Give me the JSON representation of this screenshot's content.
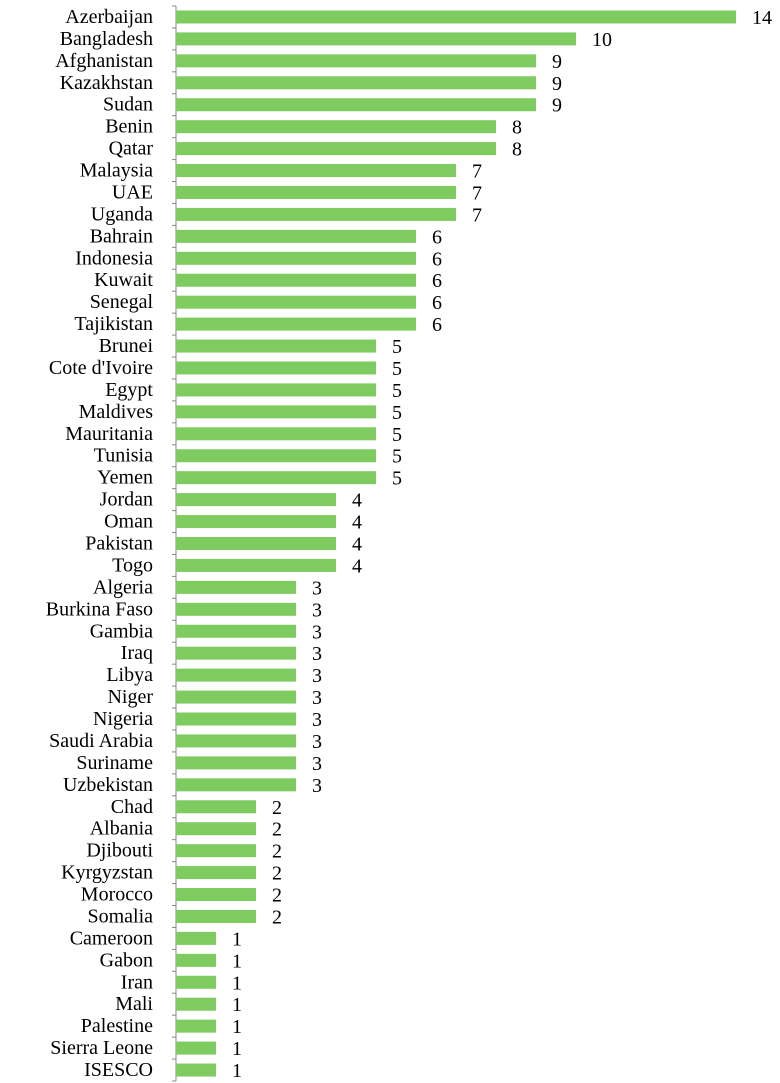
{
  "chart_data": {
    "type": "bar",
    "orientation": "horizontal",
    "title": "",
    "xlabel": "",
    "ylabel": "",
    "bar_color": "#7ecb5f",
    "xlim": [
      0,
      14
    ],
    "grid": false,
    "legend": "none",
    "categories": [
      "Azerbaijan",
      "Bangladesh",
      "Afghanistan",
      "Kazakhstan",
      "Sudan",
      "Benin",
      "Qatar",
      "Malaysia",
      "UAE",
      "Uganda",
      "Bahrain",
      "Indonesia",
      "Kuwait",
      "Senegal",
      "Tajikistan",
      "Brunei",
      "Cote d'Ivoire",
      "Egypt",
      "Maldives",
      "Mauritania",
      "Tunisia",
      "Yemen",
      "Jordan",
      "Oman",
      "Pakistan",
      "Togo",
      "Algeria",
      "Burkina Faso",
      "Gambia",
      "Iraq",
      "Libya",
      "Niger",
      "Nigeria",
      "Saudi Arabia",
      "Suriname",
      "Uzbekistan",
      "Chad",
      "Albania",
      "Djibouti",
      "Kyrgyzstan",
      "Morocco",
      "Somalia",
      "Cameroon",
      "Gabon",
      "Iran",
      "Mali",
      "Palestine",
      "Sierra Leone",
      "ISESCO"
    ],
    "values": [
      14,
      10,
      9,
      9,
      9,
      8,
      8,
      7,
      7,
      7,
      6,
      6,
      6,
      6,
      6,
      5,
      5,
      5,
      5,
      5,
      5,
      5,
      4,
      4,
      4,
      4,
      3,
      3,
      3,
      3,
      3,
      3,
      3,
      3,
      3,
      3,
      2,
      2,
      2,
      2,
      2,
      2,
      1,
      1,
      1,
      1,
      1,
      1,
      1
    ]
  }
}
